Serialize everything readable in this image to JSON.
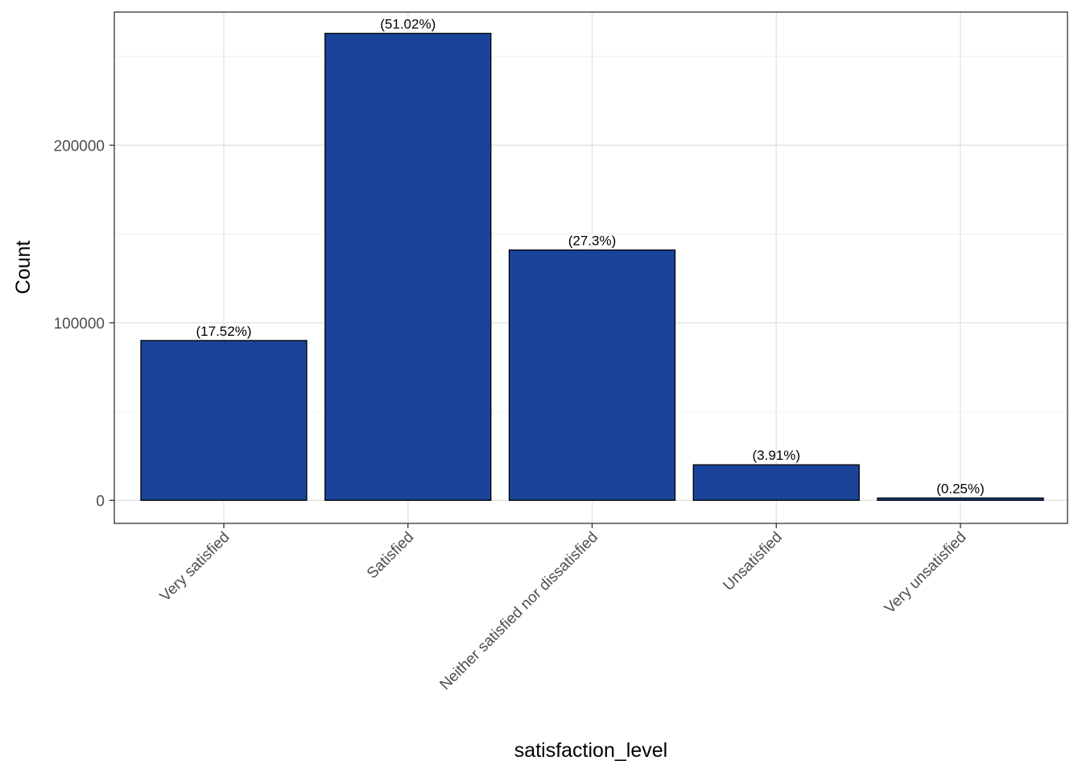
{
  "chart_data": {
    "type": "bar",
    "categories": [
      "Very satisfied",
      "Satisfied",
      "Neither satisfied nor dissatisfied",
      "Unsatisfied",
      "Very unsatisfied"
    ],
    "values": [
      90000,
      263000,
      141000,
      20000,
      1300
    ],
    "data_labels": [
      "(17.52%)",
      "(51.02%)",
      "(27.3%)",
      "(3.91%)",
      "(0.25%)"
    ],
    "xlabel": "satisfaction_level",
    "ylabel": "Count",
    "ylim": [
      -13000,
      275000
    ],
    "yticks": [
      0,
      100000,
      200000
    ],
    "ytick_labels": [
      "0",
      "100000",
      "200000"
    ],
    "grid": true,
    "bar_color": "#1a4499",
    "bar_edge_color": "#000000"
  }
}
